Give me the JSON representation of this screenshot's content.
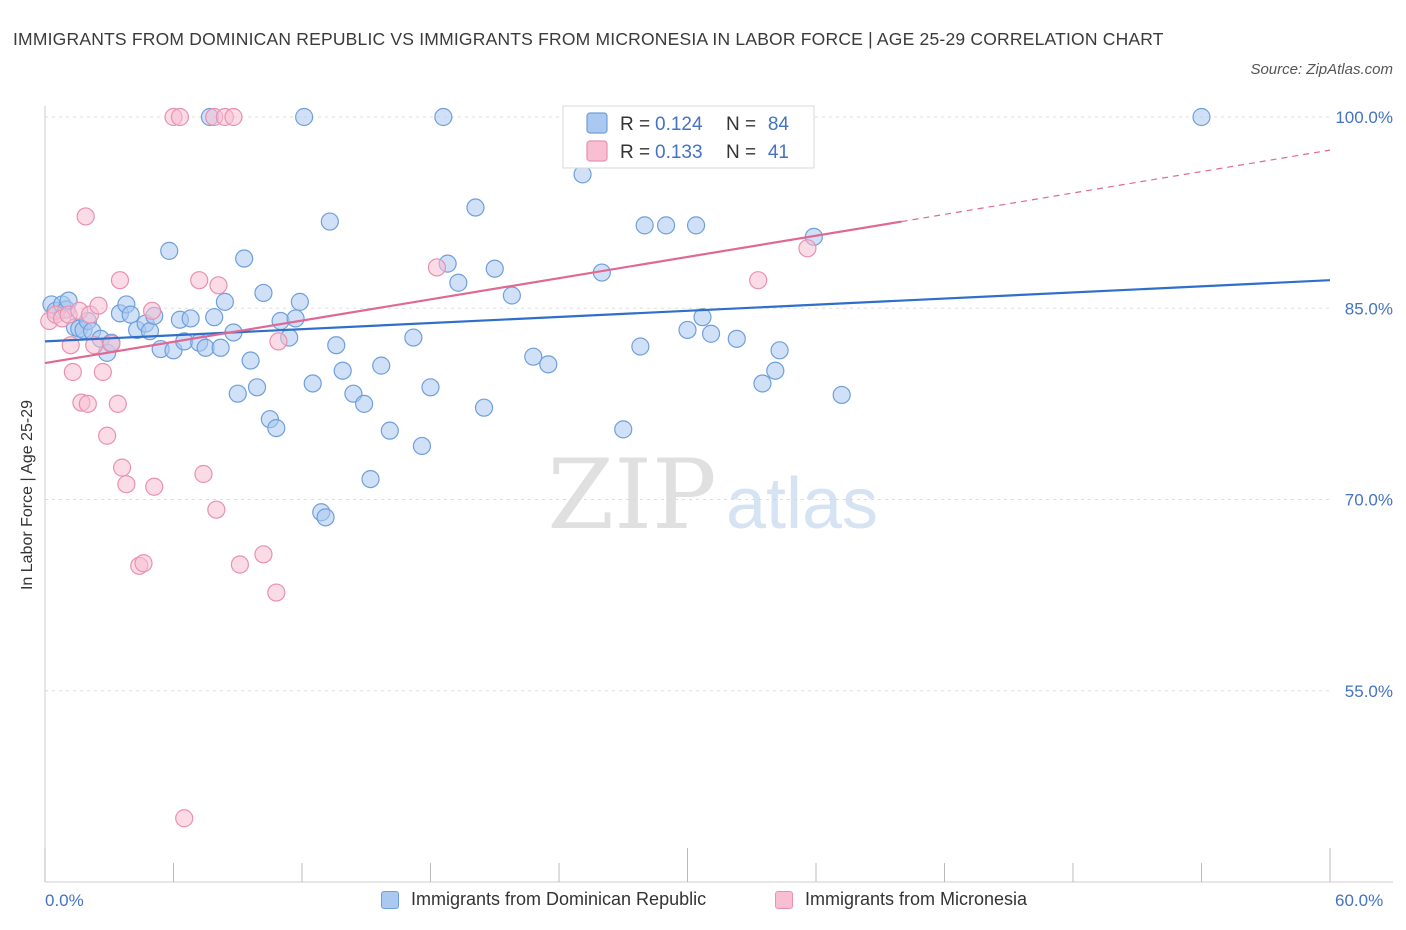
{
  "title": "IMMIGRANTS FROM DOMINICAN REPUBLIC VS IMMIGRANTS FROM MICRONESIA IN LABOR FORCE | AGE 25-29 CORRELATION CHART",
  "source": "Source: ZipAtlas.com",
  "watermark": {
    "zip": "ZIP",
    "atlas": "atlas"
  },
  "colors": {
    "blue_fill": "#aac8f0",
    "blue_stroke": "#6f9fdb",
    "blue_line": "#2f6fc9",
    "pink_fill": "#f7bfd1",
    "pink_stroke": "#e990b0",
    "pink_line": "#e06894",
    "axis_text": "#4472c4",
    "grid": "#dddddd"
  },
  "legend_stats": [
    {
      "r_label": "R =",
      "r": "0.124",
      "n_label": "N =",
      "n": "84"
    },
    {
      "r_label": "R =",
      "r": "0.133",
      "n_label": "N =",
      "n": "41"
    }
  ],
  "chart_data": {
    "type": "scatter",
    "xlabel": "",
    "ylabel": "In Labor Force | Age 25-29",
    "xlim": [
      0,
      60
    ],
    "ylim": [
      40,
      100
    ],
    "x_tick_labels": [
      "0.0%",
      "60.0%"
    ],
    "y_ticks": [
      55,
      70,
      85,
      100
    ],
    "y_tick_labels": [
      "55.0%",
      "70.0%",
      "85.0%",
      "100.0%"
    ],
    "grid": true,
    "legend_position": "top-center",
    "series": [
      {
        "name": "Immigrants from Dominican Republic",
        "color": "#aac8f0",
        "trend": {
          "x": [
            0,
            60
          ],
          "y": [
            82.4,
            87.2
          ],
          "dashed_from": null
        },
        "points": [
          [
            0.3,
            85.3
          ],
          [
            0.5,
            84.8
          ],
          [
            0.8,
            85.3
          ],
          [
            1.0,
            84.9
          ],
          [
            1.1,
            85.6
          ],
          [
            1.4,
            83.5
          ],
          [
            1.6,
            83.4
          ],
          [
            1.8,
            83.3
          ],
          [
            2.0,
            84.0
          ],
          [
            2.2,
            83.2
          ],
          [
            2.6,
            82.6
          ],
          [
            2.9,
            81.5
          ],
          [
            3.1,
            82.3
          ],
          [
            3.5,
            84.6
          ],
          [
            3.8,
            85.3
          ],
          [
            4.0,
            84.5
          ],
          [
            4.3,
            83.3
          ],
          [
            4.7,
            83.8
          ],
          [
            4.9,
            83.2
          ],
          [
            5.1,
            84.4
          ],
          [
            5.4,
            81.8
          ],
          [
            5.8,
            89.5
          ],
          [
            6.0,
            81.7
          ],
          [
            6.3,
            84.1
          ],
          [
            6.5,
            82.4
          ],
          [
            6.8,
            84.2
          ],
          [
            7.2,
            82.3
          ],
          [
            7.5,
            81.9
          ],
          [
            7.7,
            100.0
          ],
          [
            7.9,
            84.3
          ],
          [
            8.2,
            81.9
          ],
          [
            8.4,
            85.5
          ],
          [
            8.8,
            83.1
          ],
          [
            9.0,
            78.3
          ],
          [
            9.3,
            88.9
          ],
          [
            9.6,
            80.9
          ],
          [
            9.9,
            78.8
          ],
          [
            10.2,
            86.2
          ],
          [
            10.5,
            76.3
          ],
          [
            10.8,
            75.6
          ],
          [
            11.0,
            84.0
          ],
          [
            11.4,
            82.7
          ],
          [
            11.7,
            84.2
          ],
          [
            11.9,
            85.5
          ],
          [
            12.1,
            100.0
          ],
          [
            12.5,
            79.1
          ],
          [
            12.9,
            69.0
          ],
          [
            13.1,
            68.6
          ],
          [
            13.3,
            91.8
          ],
          [
            13.6,
            82.1
          ],
          [
            13.9,
            80.1
          ],
          [
            14.4,
            78.3
          ],
          [
            15.2,
            71.6
          ],
          [
            14.9,
            77.5
          ],
          [
            15.7,
            80.5
          ],
          [
            16.1,
            75.4
          ],
          [
            17.2,
            82.7
          ],
          [
            17.6,
            74.2
          ],
          [
            18.0,
            78.8
          ],
          [
            18.6,
            100.0
          ],
          [
            18.8,
            88.5
          ],
          [
            19.3,
            87.0
          ],
          [
            20.1,
            92.9
          ],
          [
            20.5,
            77.2
          ],
          [
            21.0,
            88.1
          ],
          [
            21.8,
            86.0
          ],
          [
            22.8,
            81.2
          ],
          [
            23.5,
            80.6
          ],
          [
            25.1,
            95.5
          ],
          [
            26.0,
            87.8
          ],
          [
            27.0,
            75.5
          ],
          [
            27.8,
            82.0
          ],
          [
            28.0,
            91.5
          ],
          [
            29.0,
            91.5
          ],
          [
            30.0,
            83.3
          ],
          [
            30.4,
            91.5
          ],
          [
            30.7,
            84.3
          ],
          [
            31.1,
            83.0
          ],
          [
            32.3,
            82.6
          ],
          [
            33.5,
            79.1
          ],
          [
            34.1,
            80.1
          ],
          [
            34.3,
            81.7
          ],
          [
            35.9,
            90.6
          ],
          [
            37.2,
            78.2
          ],
          [
            54.0,
            100.0
          ]
        ]
      },
      {
        "name": "Immigrants from Micronesia",
        "color": "#f7bfd1",
        "trend": {
          "x": [
            0,
            40
          ],
          "y": [
            80.7,
            91.8
          ],
          "dashed_from": 40,
          "dashed_to": [
            60,
            97.4
          ]
        },
        "points": [
          [
            0.2,
            84.0
          ],
          [
            0.5,
            84.5
          ],
          [
            0.8,
            84.2
          ],
          [
            1.1,
            84.5
          ],
          [
            1.2,
            82.1
          ],
          [
            1.3,
            80.0
          ],
          [
            1.6,
            84.8
          ],
          [
            1.7,
            77.6
          ],
          [
            1.9,
            92.2
          ],
          [
            2.0,
            77.5
          ],
          [
            2.1,
            84.5
          ],
          [
            2.3,
            82.1
          ],
          [
            2.5,
            85.2
          ],
          [
            2.7,
            80.0
          ],
          [
            2.9,
            75.0
          ],
          [
            3.1,
            82.2
          ],
          [
            3.4,
            77.5
          ],
          [
            3.5,
            87.2
          ],
          [
            3.6,
            72.5
          ],
          [
            3.8,
            71.2
          ],
          [
            4.4,
            64.8
          ],
          [
            4.6,
            65.0
          ],
          [
            5.0,
            84.8
          ],
          [
            5.1,
            71.0
          ],
          [
            6.0,
            100.0
          ],
          [
            6.3,
            100.0
          ],
          [
            6.5,
            45.0
          ],
          [
            7.2,
            87.2
          ],
          [
            7.4,
            72.0
          ],
          [
            7.9,
            100.0
          ],
          [
            8.0,
            69.2
          ],
          [
            8.1,
            86.8
          ],
          [
            8.4,
            100.0
          ],
          [
            8.8,
            100.0
          ],
          [
            9.1,
            64.9
          ],
          [
            10.2,
            65.7
          ],
          [
            10.9,
            82.4
          ],
          [
            10.8,
            62.7
          ],
          [
            18.3,
            88.2
          ],
          [
            33.3,
            87.2
          ],
          [
            35.6,
            89.7
          ]
        ]
      }
    ]
  },
  "legend_bottom": [
    "Immigrants from Dominican Republic",
    "Immigrants from Micronesia"
  ]
}
